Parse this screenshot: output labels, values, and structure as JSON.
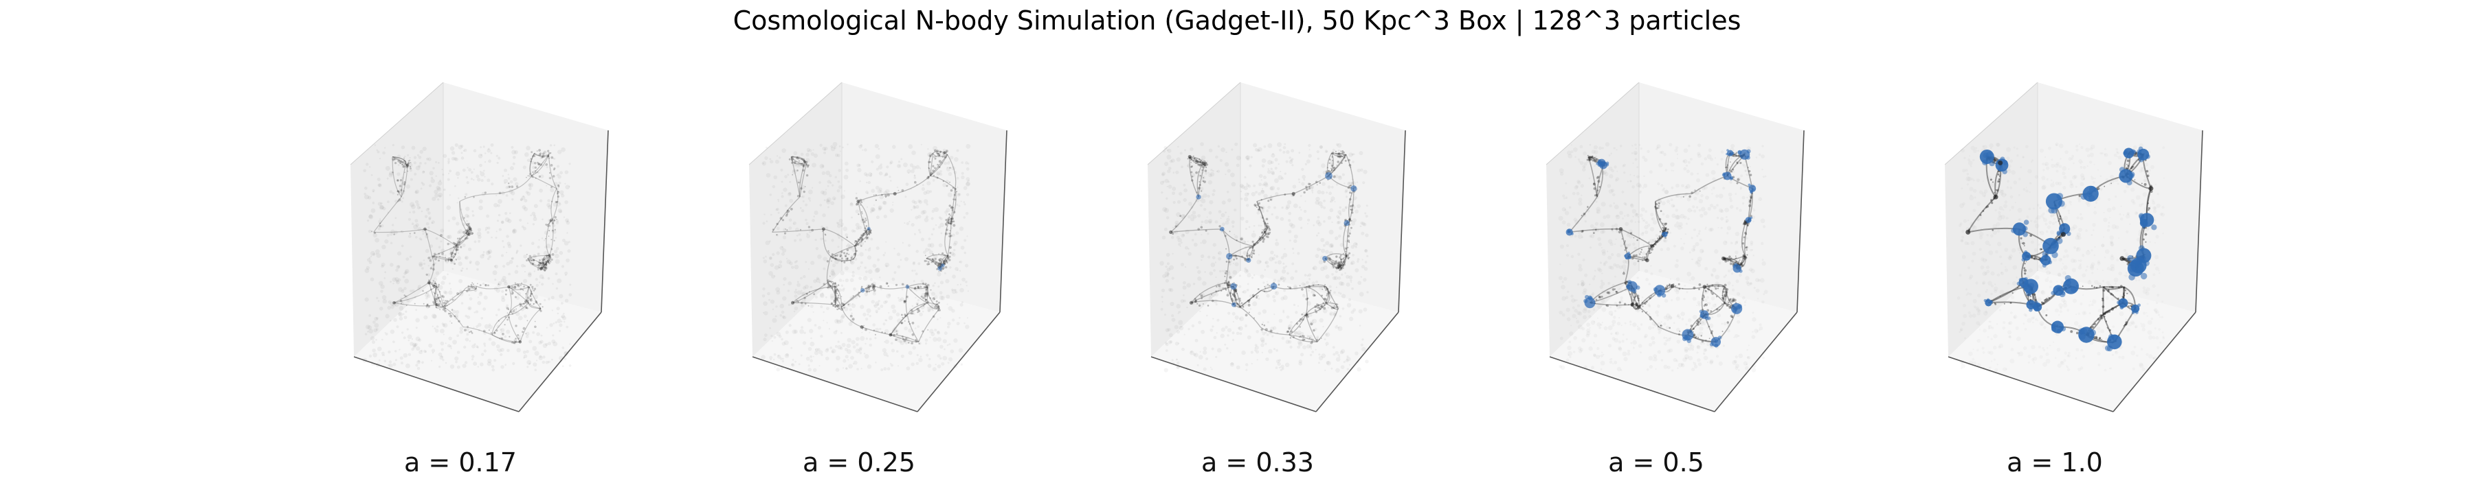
{
  "figure": {
    "title": "Cosmological N-body Simulation (Gadget-II), 50 Kpc^3 Box | 128^3 particles"
  },
  "chart_data": {
    "type": "scatter",
    "projection": "3d",
    "title": "Cosmological N-body Simulation (Gadget-II), 50 Kpc^3 Box | 128^3 particles",
    "axes_visible": false,
    "grid": false,
    "panes": "light gray",
    "colors": {
      "particles": "#2a2a2a",
      "halos": "#2f6bb5"
    },
    "panels": [
      {
        "label": "a = 0.17",
        "a": 0.17,
        "halo_density": 0.0
      },
      {
        "label": "a = 0.25",
        "a": 0.25,
        "halo_density": 0.15
      },
      {
        "label": "a = 0.33",
        "a": 0.33,
        "halo_density": 0.35
      },
      {
        "label": "a = 0.5",
        "a": 0.5,
        "halo_density": 0.65
      },
      {
        "label": "a = 1.0",
        "a": 1.0,
        "halo_density": 1.0
      }
    ]
  }
}
